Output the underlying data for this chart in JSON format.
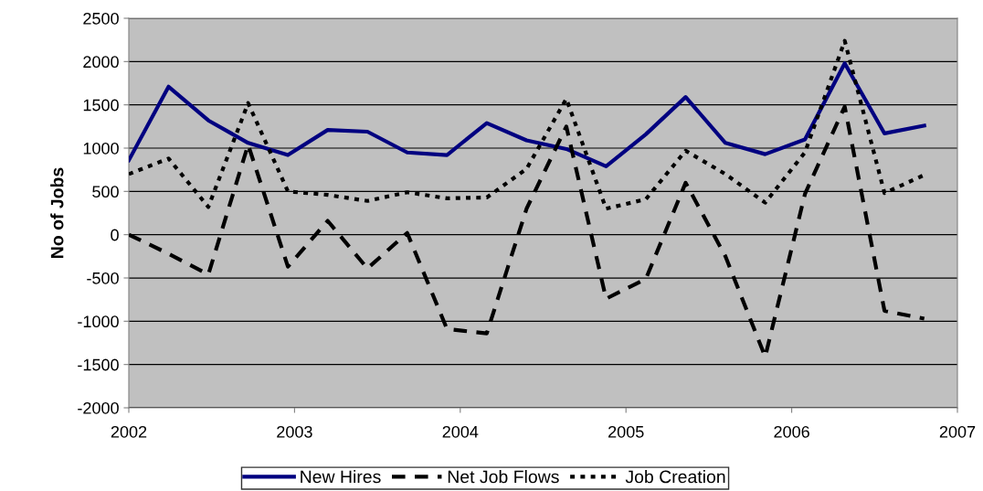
{
  "chart_data": {
    "type": "line",
    "ylabel": "No of Jobs",
    "x": [
      2002,
      2002.24,
      2002.48,
      2002.72,
      2002.96,
      2003.2,
      2003.44,
      2003.68,
      2003.92,
      2004.16,
      2004.4,
      2004.64,
      2004.88,
      2005.12,
      2005.36,
      2005.6,
      2005.84,
      2006.08,
      2006.32,
      2006.56,
      2006.8
    ],
    "series": [
      {
        "name": "New Hires",
        "color": "#000080",
        "line_style": "solid",
        "values": [
          860,
          1710,
          1320,
          1060,
          920,
          1210,
          1190,
          950,
          920,
          1290,
          1090,
          990,
          790,
          1160,
          1590,
          1060,
          930,
          1100,
          1980,
          1170,
          1260
        ]
      },
      {
        "name": "Net Job Flows",
        "color": "#000000",
        "line_style": "dashed",
        "values": [
          0,
          -220,
          -460,
          1040,
          -370,
          160,
          -390,
          20,
          -1090,
          -1140,
          300,
          1250,
          -740,
          -510,
          600,
          -250,
          -1410,
          470,
          1480,
          -880,
          -970
        ]
      },
      {
        "name": "Job Creation",
        "color": "#000000",
        "line_style": "dotted",
        "values": [
          700,
          880,
          320,
          1520,
          500,
          460,
          390,
          490,
          420,
          430,
          760,
          1570,
          300,
          410,
          970,
          700,
          370,
          950,
          2240,
          480,
          690
        ]
      }
    ],
    "xlim": [
      2002,
      2007
    ],
    "xticks": [
      2002,
      2003,
      2004,
      2005,
      2006,
      2007
    ],
    "ylim": [
      -2000,
      2500
    ],
    "yticks": [
      -2000,
      -1500,
      -1000,
      -500,
      0,
      500,
      1000,
      1500,
      2000,
      2500
    ],
    "grid": "y",
    "legend": "bottom",
    "marker": "none"
  }
}
